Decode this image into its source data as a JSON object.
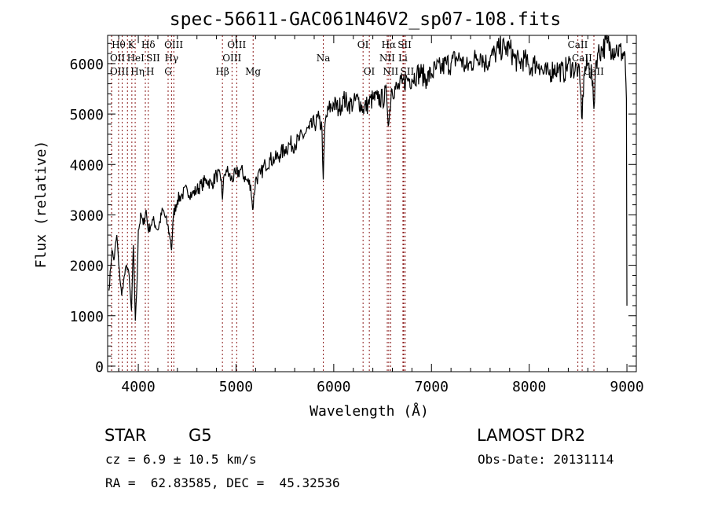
{
  "chart_data": {
    "type": "line",
    "title": "spec-56611-GAC061N46V2_sp07-108.fits",
    "xlabel": "Wavelength (Å)",
    "ylabel": "Flux (relative)",
    "xlim": [
      3686,
      9096
    ],
    "ylim": [
      -110,
      6560
    ],
    "xticks": [
      4000,
      5000,
      6000,
      7000,
      8000,
      9000
    ],
    "yticks": [
      0,
      1000,
      2000,
      3000,
      4000,
      5000,
      6000
    ],
    "series": [
      {
        "name": "spectrum",
        "x": [
          3700,
          3730,
          3750,
          3780,
          3800,
          3830,
          3850,
          3880,
          3900,
          3930,
          3950,
          3970,
          3990,
          4000,
          4030,
          4050,
          4080,
          4100,
          4130,
          4150,
          4200,
          4250,
          4300,
          4330,
          4340,
          4360,
          4400,
          4450,
          4500,
          4550,
          4600,
          4650,
          4700,
          4750,
          4800,
          4850,
          4861,
          4880,
          4900,
          4950,
          5000,
          5050,
          5100,
          5150,
          5170,
          5200,
          5250,
          5300,
          5350,
          5400,
          5450,
          5500,
          5550,
          5600,
          5650,
          5700,
          5750,
          5800,
          5850,
          5880,
          5893,
          5910,
          5950,
          6000,
          6050,
          6100,
          6150,
          6200,
          6250,
          6300,
          6350,
          6400,
          6450,
          6500,
          6540,
          6563,
          6590,
          6650,
          6700,
          6750,
          6800,
          6850,
          6900,
          6950,
          7000,
          7050,
          7100,
          7150,
          7200,
          7250,
          7300,
          7350,
          7400,
          7450,
          7500,
          7550,
          7600,
          7650,
          7700,
          7750,
          7800,
          7850,
          7900,
          7950,
          8000,
          8050,
          8100,
          8150,
          8200,
          8250,
          8300,
          8350,
          8400,
          8450,
          8500,
          8520,
          8542,
          8560,
          8600,
          8640,
          8662,
          8680,
          8700,
          8750,
          8800,
          8850,
          8900,
          8950,
          8980,
          8995,
          9000
        ],
        "y": [
          1500,
          2300,
          2100,
          2600,
          2000,
          1400,
          1700,
          2000,
          1900,
          1100,
          2400,
          900,
          1800,
          2700,
          3000,
          2800,
          3100,
          2700,
          2800,
          2900,
          2700,
          3100,
          2800,
          2500,
          2300,
          3000,
          3300,
          3400,
          3500,
          3400,
          3500,
          3600,
          3700,
          3600,
          3800,
          3700,
          3300,
          3800,
          3900,
          3700,
          3800,
          3900,
          3700,
          3600,
          3100,
          3700,
          3800,
          4000,
          4100,
          4100,
          4200,
          4300,
          4400,
          4400,
          4500,
          4600,
          4700,
          4800,
          4900,
          4700,
          3700,
          4800,
          5100,
          5200,
          5100,
          5300,
          5200,
          5200,
          5300,
          5100,
          5200,
          5300,
          5300,
          5300,
          5400,
          4800,
          5500,
          5500,
          5600,
          5700,
          5700,
          5800,
          5800,
          5700,
          5800,
          5900,
          5900,
          6000,
          6000,
          6100,
          6100,
          5900,
          6000,
          6100,
          6200,
          6000,
          6100,
          6200,
          6300,
          6300,
          6300,
          6100,
          6000,
          6100,
          5900,
          6000,
          6000,
          5800,
          5800,
          5900,
          5900,
          5800,
          6000,
          5900,
          5900,
          5600,
          4900,
          5800,
          6000,
          5800,
          5100,
          6000,
          6200,
          6300,
          6400,
          6300,
          6300,
          6200,
          6200,
          5300,
          1200
        ]
      }
    ],
    "line_marks": [
      {
        "label": "Hθ",
        "wl": 3798,
        "row": 0
      },
      {
        "label": "K",
        "wl": 3934,
        "row": 0
      },
      {
        "label": "Hδ",
        "wl": 4102,
        "row": 0
      },
      {
        "label": "OIII",
        "wl": 4363,
        "row": 0
      },
      {
        "label": "OIII",
        "wl": 5007,
        "row": 0
      },
      {
        "label": "OI",
        "wl": 6300,
        "row": 0
      },
      {
        "label": "Hα",
        "wl": 6563,
        "row": 0
      },
      {
        "label": "SII",
        "wl": 6716,
        "row": 0
      },
      {
        "label": "CaII",
        "wl": 8498,
        "row": 0
      },
      {
        "label": "OII",
        "wl": 3727,
        "row": 1
      },
      {
        "label": "HeI",
        "wl": 3889,
        "row": 1
      },
      {
        "label": "SII",
        "wl": 4072,
        "row": 1
      },
      {
        "label": "Hγ",
        "wl": 4340,
        "row": 1
      },
      {
        "label": "OIII",
        "wl": 4959,
        "row": 1
      },
      {
        "label": "Na",
        "wl": 5893,
        "row": 1
      },
      {
        "label": "NII",
        "wl": 6548,
        "row": 1
      },
      {
        "label": "Li",
        "wl": 6708,
        "row": 1
      },
      {
        "label": "CaII",
        "wl": 8542,
        "row": 1
      },
      {
        "label": "OIII",
        "wl": 3727,
        "row": 2
      },
      {
        "label": "Hη",
        "wl": 3835,
        "row": 2
      },
      {
        "label": "H",
        "wl": 3968,
        "row": 2
      },
      {
        "label": "G",
        "wl": 4305,
        "row": 2
      },
      {
        "label": "Hβ",
        "wl": 4861,
        "row": 2
      },
      {
        "label": "Mg",
        "wl": 5175,
        "row": 2
      },
      {
        "label": "OI",
        "wl": 6364,
        "row": 2
      },
      {
        "label": "NII",
        "wl": 6583,
        "row": 2
      },
      {
        "label": "SII",
        "wl": 6731,
        "row": 2
      },
      {
        "label": "CaII",
        "wl": 8662,
        "row": 2
      }
    ]
  },
  "info": {
    "class": "STAR",
    "subclass": "G5",
    "survey": "LAMOST DR2",
    "cz": "cz = 6.9 ± 10.5 km/s",
    "obs_date": "Obs-Date: 20131114",
    "coords": "RA =  62.83585, DEC =  45.32536"
  }
}
